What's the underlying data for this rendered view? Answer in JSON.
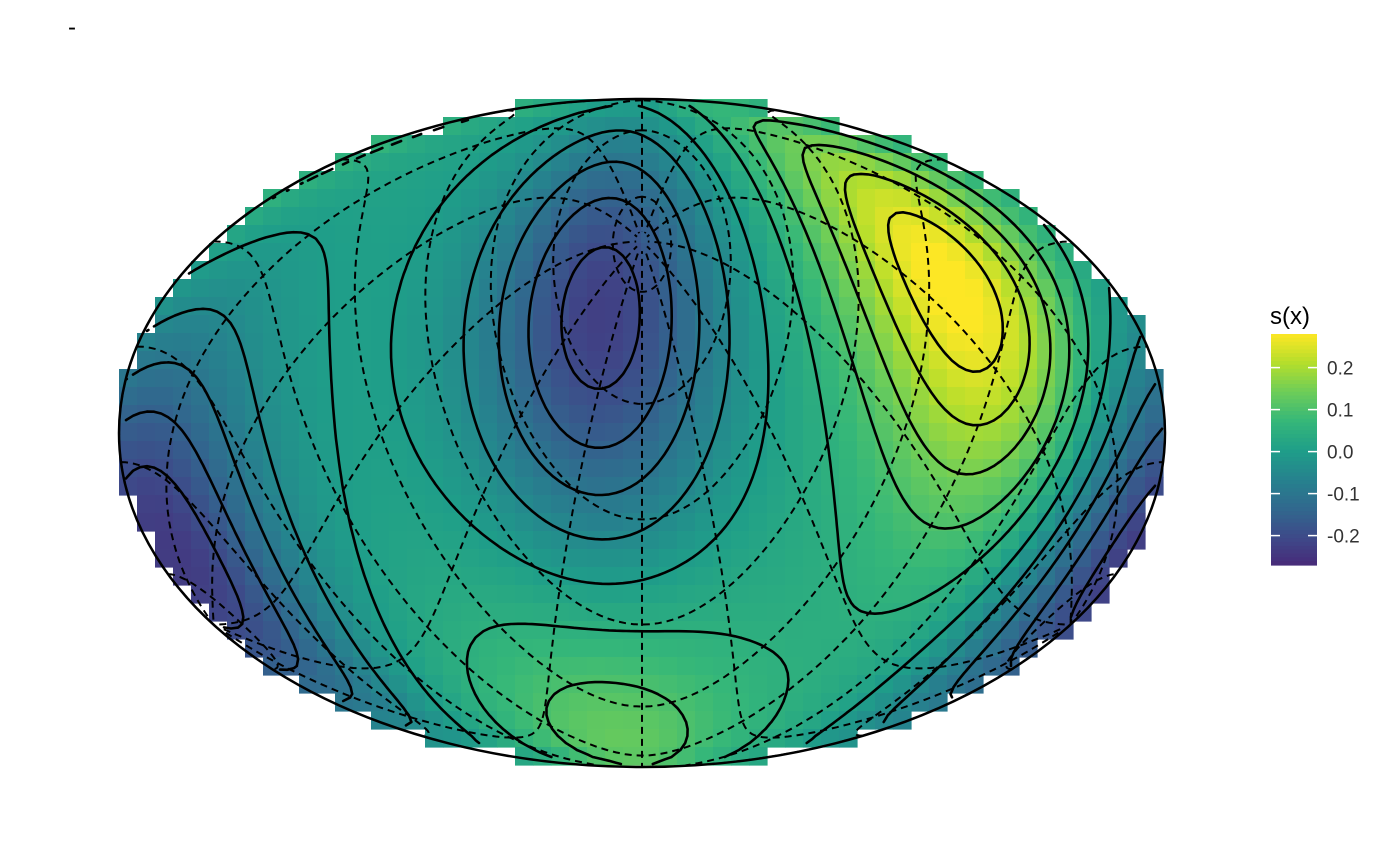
{
  "title": "-",
  "chart_data": {
    "type": "heatmap",
    "title": "-",
    "xlabel": "",
    "ylabel": "",
    "projection": "elliptical",
    "fill_scale": "viridis",
    "legend": {
      "title": "s(x)",
      "placement": "right",
      "ticks": [
        0.2,
        0.1,
        0.0,
        -0.1,
        -0.2
      ],
      "tick_labels": [
        "0.2",
        "0.1",
        "0.0",
        "-0.1",
        "-0.2"
      ],
      "range": [
        -0.27,
        0.28
      ]
    },
    "extrema": [
      {
        "kind": "maximum",
        "value": 0.28,
        "lon": 120,
        "lat": 25
      },
      {
        "kind": "minimum",
        "value": -0.25,
        "lon": -15,
        "lat": 20
      },
      {
        "kind": "minimum",
        "value": -0.27,
        "lon": -175,
        "lat": -20
      },
      {
        "kind": "maximum",
        "value": 0.12,
        "lon": -20,
        "lat": -65
      }
    ],
    "contour_levels": [
      -0.25,
      -0.2,
      -0.15,
      -0.1,
      -0.05,
      0.0,
      0.05,
      0.1,
      0.15,
      0.2,
      0.25
    ],
    "graticule": {
      "parallels_step_deg": 20,
      "meridians_step_deg": 30,
      "tilted": true
    }
  }
}
